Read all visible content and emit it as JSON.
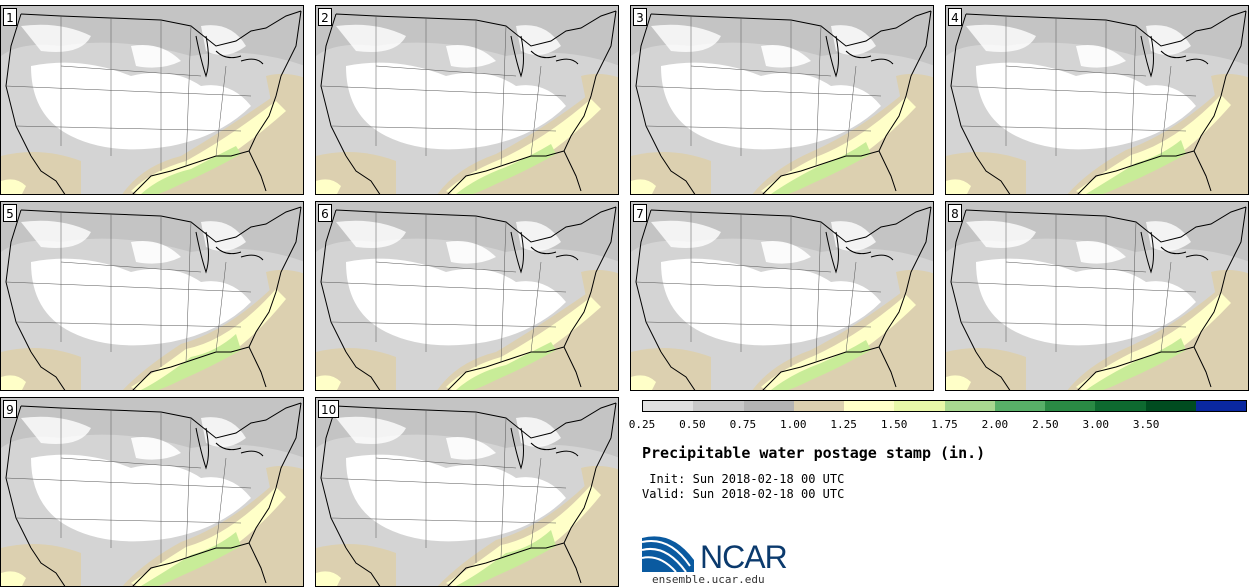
{
  "panels": [
    {
      "label": "1"
    },
    {
      "label": "2"
    },
    {
      "label": "3"
    },
    {
      "label": "4"
    },
    {
      "label": "5"
    },
    {
      "label": "6"
    },
    {
      "label": "7"
    },
    {
      "label": "8"
    },
    {
      "label": "9"
    },
    {
      "label": "10"
    }
  ],
  "legend": {
    "ticks": [
      "0.25",
      "0.50",
      "0.75",
      "1.00",
      "1.25",
      "1.50",
      "1.75",
      "2.00",
      "2.50",
      "3.00",
      "3.50"
    ],
    "colors": [
      "#e0e0e0",
      "#c8c8c8",
      "#b4b4b4",
      "#dcd0b0",
      "#ffffc8",
      "#e8f8a8",
      "#a8d890",
      "#58b068",
      "#2a8a44",
      "#0e6a30",
      "#004c20",
      "#0a28a0"
    ]
  },
  "title": "Precipitable water postage stamp (in.)",
  "init": {
    "label": "Init:",
    "value": "Sun 2018-02-18 00 UTC"
  },
  "valid": {
    "label": "Valid:",
    "value": "Sun 2018-02-18 00 UTC"
  },
  "logo_text": "NCAR",
  "site": "ensemble.ucar.edu"
}
